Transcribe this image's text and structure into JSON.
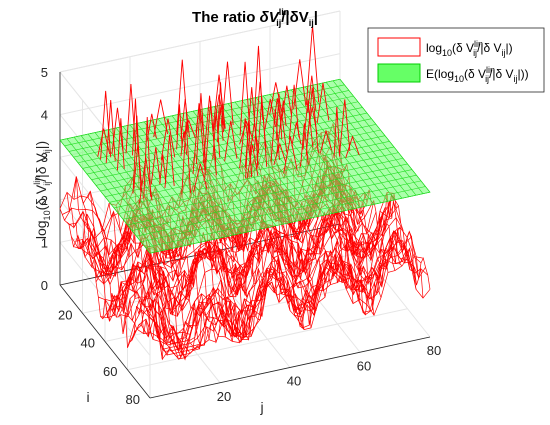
{
  "chart_data": {
    "type": "surface",
    "title": {
      "prefix": "The ratio ",
      "num_sym": "δV",
      "num_sup": "lin",
      "num_sub": "ij",
      "sep": "/|δV",
      "den_sub": "ij",
      "close": "|"
    },
    "xlabel": "j",
    "ylabel": "i",
    "zlabel": {
      "pre": "log",
      "sub10": "10",
      "mid": "(δ V",
      "sup": "lin",
      "sub": "ij",
      "after": "/|δ V",
      "sub2": "ij",
      "close": "|)"
    },
    "xlim": [
      0,
      80
    ],
    "ylim": [
      0,
      80
    ],
    "zlim": [
      0,
      5
    ],
    "x_ticks": [
      "20",
      "40",
      "60",
      "80"
    ],
    "y_ticks": [
      "20",
      "40",
      "60",
      "80"
    ],
    "z_ticks": [
      "0",
      "1",
      "2",
      "3",
      "4",
      "5"
    ],
    "grid": true,
    "legend_position": "top-right",
    "series": [
      {
        "name": {
          "pre": "log",
          "sub10": "10",
          "mid": "(δ V",
          "sup": "lin",
          "sub": "ij",
          "after": "/|δ V",
          "sub2": "ij",
          "close": "|)"
        },
        "color": "#ff0000",
        "style": "wireframe surface of log10 ratio, mostly 1-3 with spikes up to 5",
        "typical_range": [
          0.3,
          5
        ]
      },
      {
        "name": {
          "pre": "E(log",
          "sub10": "10",
          "mid": "(δ V",
          "sup": "lin",
          "sub": "ij",
          "after": "/|δ V",
          "sub2": "ij",
          "close": "|))"
        },
        "color": "#00ff00",
        "style": "flat plane at the expected value",
        "value": 3.4
      }
    ]
  }
}
